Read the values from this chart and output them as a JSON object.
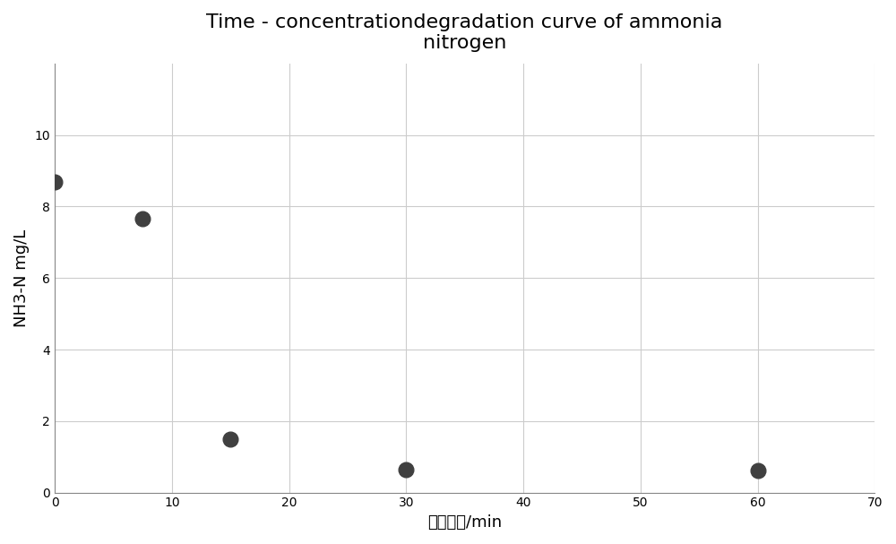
{
  "title": "Time - concentrationdegradation curve of ammonia\nnitrogen",
  "xlabel": "曝气时间/min",
  "ylabel": "NH3-N mg/L",
  "x_data": [
    0,
    7.5,
    15,
    30,
    60
  ],
  "y_data": [
    8.7,
    7.65,
    1.5,
    0.65,
    0.62
  ],
  "xlim": [
    0,
    70
  ],
  "ylim": [
    0,
    12
  ],
  "xticks": [
    0,
    10,
    20,
    30,
    40,
    50,
    60,
    70
  ],
  "yticks": [
    0,
    2,
    4,
    6,
    8,
    10
  ],
  "marker_color": "#404040",
  "marker_size": 12,
  "background_color": "#ffffff",
  "grid_color": "#cccccc",
  "title_fontsize": 16,
  "label_fontsize": 13
}
